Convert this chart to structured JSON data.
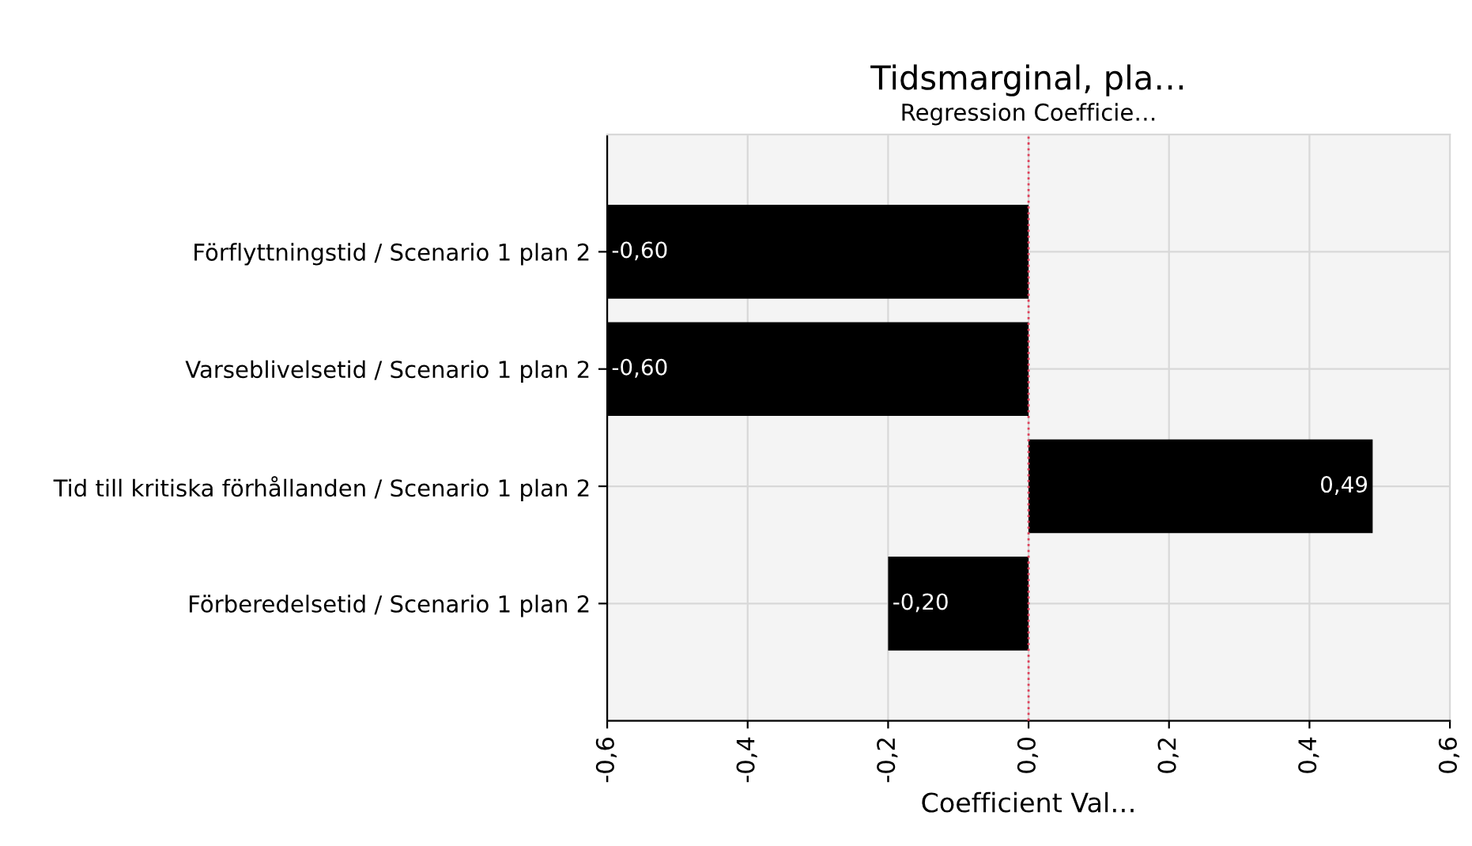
{
  "chart_data": {
    "type": "bar",
    "orientation": "horizontal",
    "title": "Tidsmarginal, pla…",
    "subtitle": "Regression Coefficie…",
    "xlabel": "Coefficient Val…",
    "categories": [
      "Förflyttningstid / Scenario 1 plan 2",
      "Varseblivelsetid / Scenario 1 plan 2",
      "Tid till kritiska förhållanden / Scenario 1 plan 2",
      "Förberedelsetid / Scenario 1 plan 2"
    ],
    "values": [
      -0.6,
      -0.6,
      0.49,
      -0.2
    ],
    "value_labels": [
      "-0,60",
      "-0,60",
      "0,49",
      "-0,20"
    ],
    "color": "#000000",
    "xlim": [
      -0.6,
      0.6
    ],
    "xticks": [
      {
        "value": -0.6,
        "label": "-0,6"
      },
      {
        "value": -0.4,
        "label": "-0,4"
      },
      {
        "value": -0.2,
        "label": "-0,2"
      },
      {
        "value": 0.0,
        "label": "0,0"
      },
      {
        "value": 0.2,
        "label": "0,2"
      },
      {
        "value": 0.4,
        "label": "0,4"
      },
      {
        "value": 0.6,
        "label": "0,6"
      }
    ],
    "ref_lines": [
      {
        "axis": "x",
        "value": 0.0,
        "color": "#e0405a",
        "line_style": "dotted"
      }
    ],
    "grid": true,
    "legend": false
  }
}
